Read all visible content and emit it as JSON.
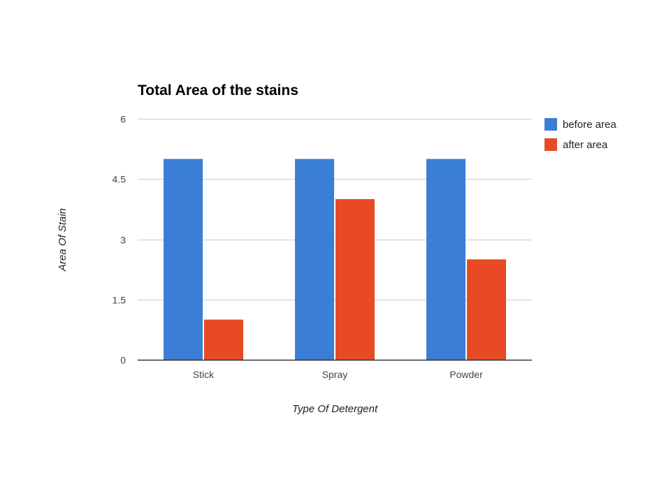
{
  "chart_data": {
    "type": "bar",
    "title": "Total Area of the stains",
    "xlabel": "Type Of Detergent",
    "ylabel": "Area Of Stain",
    "categories": [
      "Stick",
      "Spray",
      "Powder"
    ],
    "series": [
      {
        "name": "before area",
        "values": [
          5,
          5,
          5
        ],
        "color": "#3a7fd5"
      },
      {
        "name": "after area",
        "values": [
          1,
          4,
          2.5
        ],
        "color": "#e84a26"
      }
    ],
    "ylim": [
      0,
      6
    ],
    "yticks": [
      "0",
      "1.5",
      "3",
      "4.5",
      "6"
    ],
    "grid": true,
    "legend_position": "right"
  }
}
